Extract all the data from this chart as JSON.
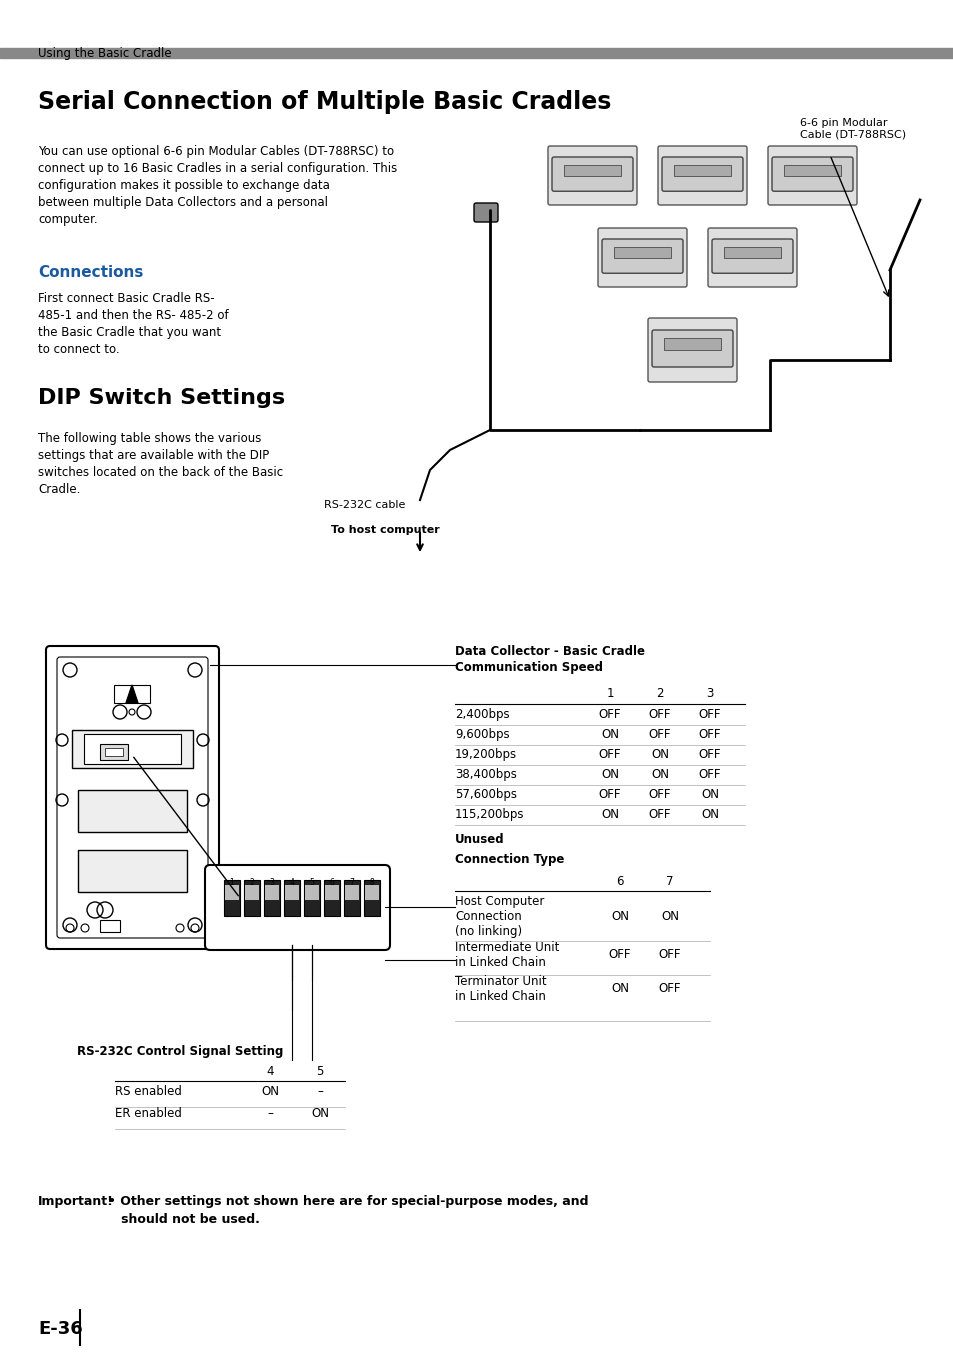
{
  "page_header": "Using the Basic Cradle",
  "main_title": "Serial Connection of Multiple Basic Cradles",
  "intro_text": "You can use optional 6-6 pin Modular Cables (DT-788RSC) to\nconnect up to 16 Basic Cradles in a serial configuration. This\nconfiguration makes it possible to exchange data\nbetween multiple Data Collectors and a personal\ncomputer.",
  "connections_title": "Connections",
  "connections_text": "First connect Basic Cradle RS-\n485-1 and then the RS- 485-2 of\nthe Basic Cradle that you want\nto connect to.",
  "dip_title": "DIP Switch Settings",
  "dip_text": "The following table shows the various\nsettings that are available with the DIP\nswitches located on the back of the Basic\nCradle.",
  "cable_label": "6-6 pin Modular\nCable (DT-788RSC)",
  "rs232c_label": "RS-232C cable",
  "host_label": "To host computer",
  "table1_title_line1": "Data Collector - Basic Cradle",
  "table1_title_line2": "Communication Speed",
  "table1_cols": [
    "",
    "1",
    "2",
    "3"
  ],
  "table1_rows": [
    [
      "2,400bps",
      "OFF",
      "OFF",
      "OFF"
    ],
    [
      "9,600bps",
      "ON",
      "OFF",
      "OFF"
    ],
    [
      "19,200bps",
      "OFF",
      "ON",
      "OFF"
    ],
    [
      "38,400bps",
      "ON",
      "ON",
      "OFF"
    ],
    [
      "57,600bps",
      "OFF",
      "OFF",
      "ON"
    ],
    [
      "115,200bps",
      "ON",
      "OFF",
      "ON"
    ]
  ],
  "unused_label": "Unused",
  "table2_title": "Connection Type",
  "table2_rows": [
    [
      "Host Computer\nConnection\n(no linking)",
      "ON",
      "ON"
    ],
    [
      "Intermediate Unit\nin Linked Chain",
      "OFF",
      "OFF"
    ],
    [
      "Terminator Unit\nin Linked Chain",
      "ON",
      "OFF"
    ]
  ],
  "table3_title": "RS-232C Control Signal Setting",
  "table3_rows": [
    [
      "RS enabled",
      "ON",
      "–"
    ],
    [
      "ER enabled",
      "–",
      "ON"
    ]
  ],
  "important_label": "Important!",
  "important_line1": "• Other settings not shown here are for special-purpose modes, and",
  "important_line2": "   should not be used.",
  "page_number": "E-36",
  "header_bar_color": "#888888",
  "bg_color": "#ffffff",
  "text_color": "#000000",
  "blue_color": "#1a5aa0"
}
